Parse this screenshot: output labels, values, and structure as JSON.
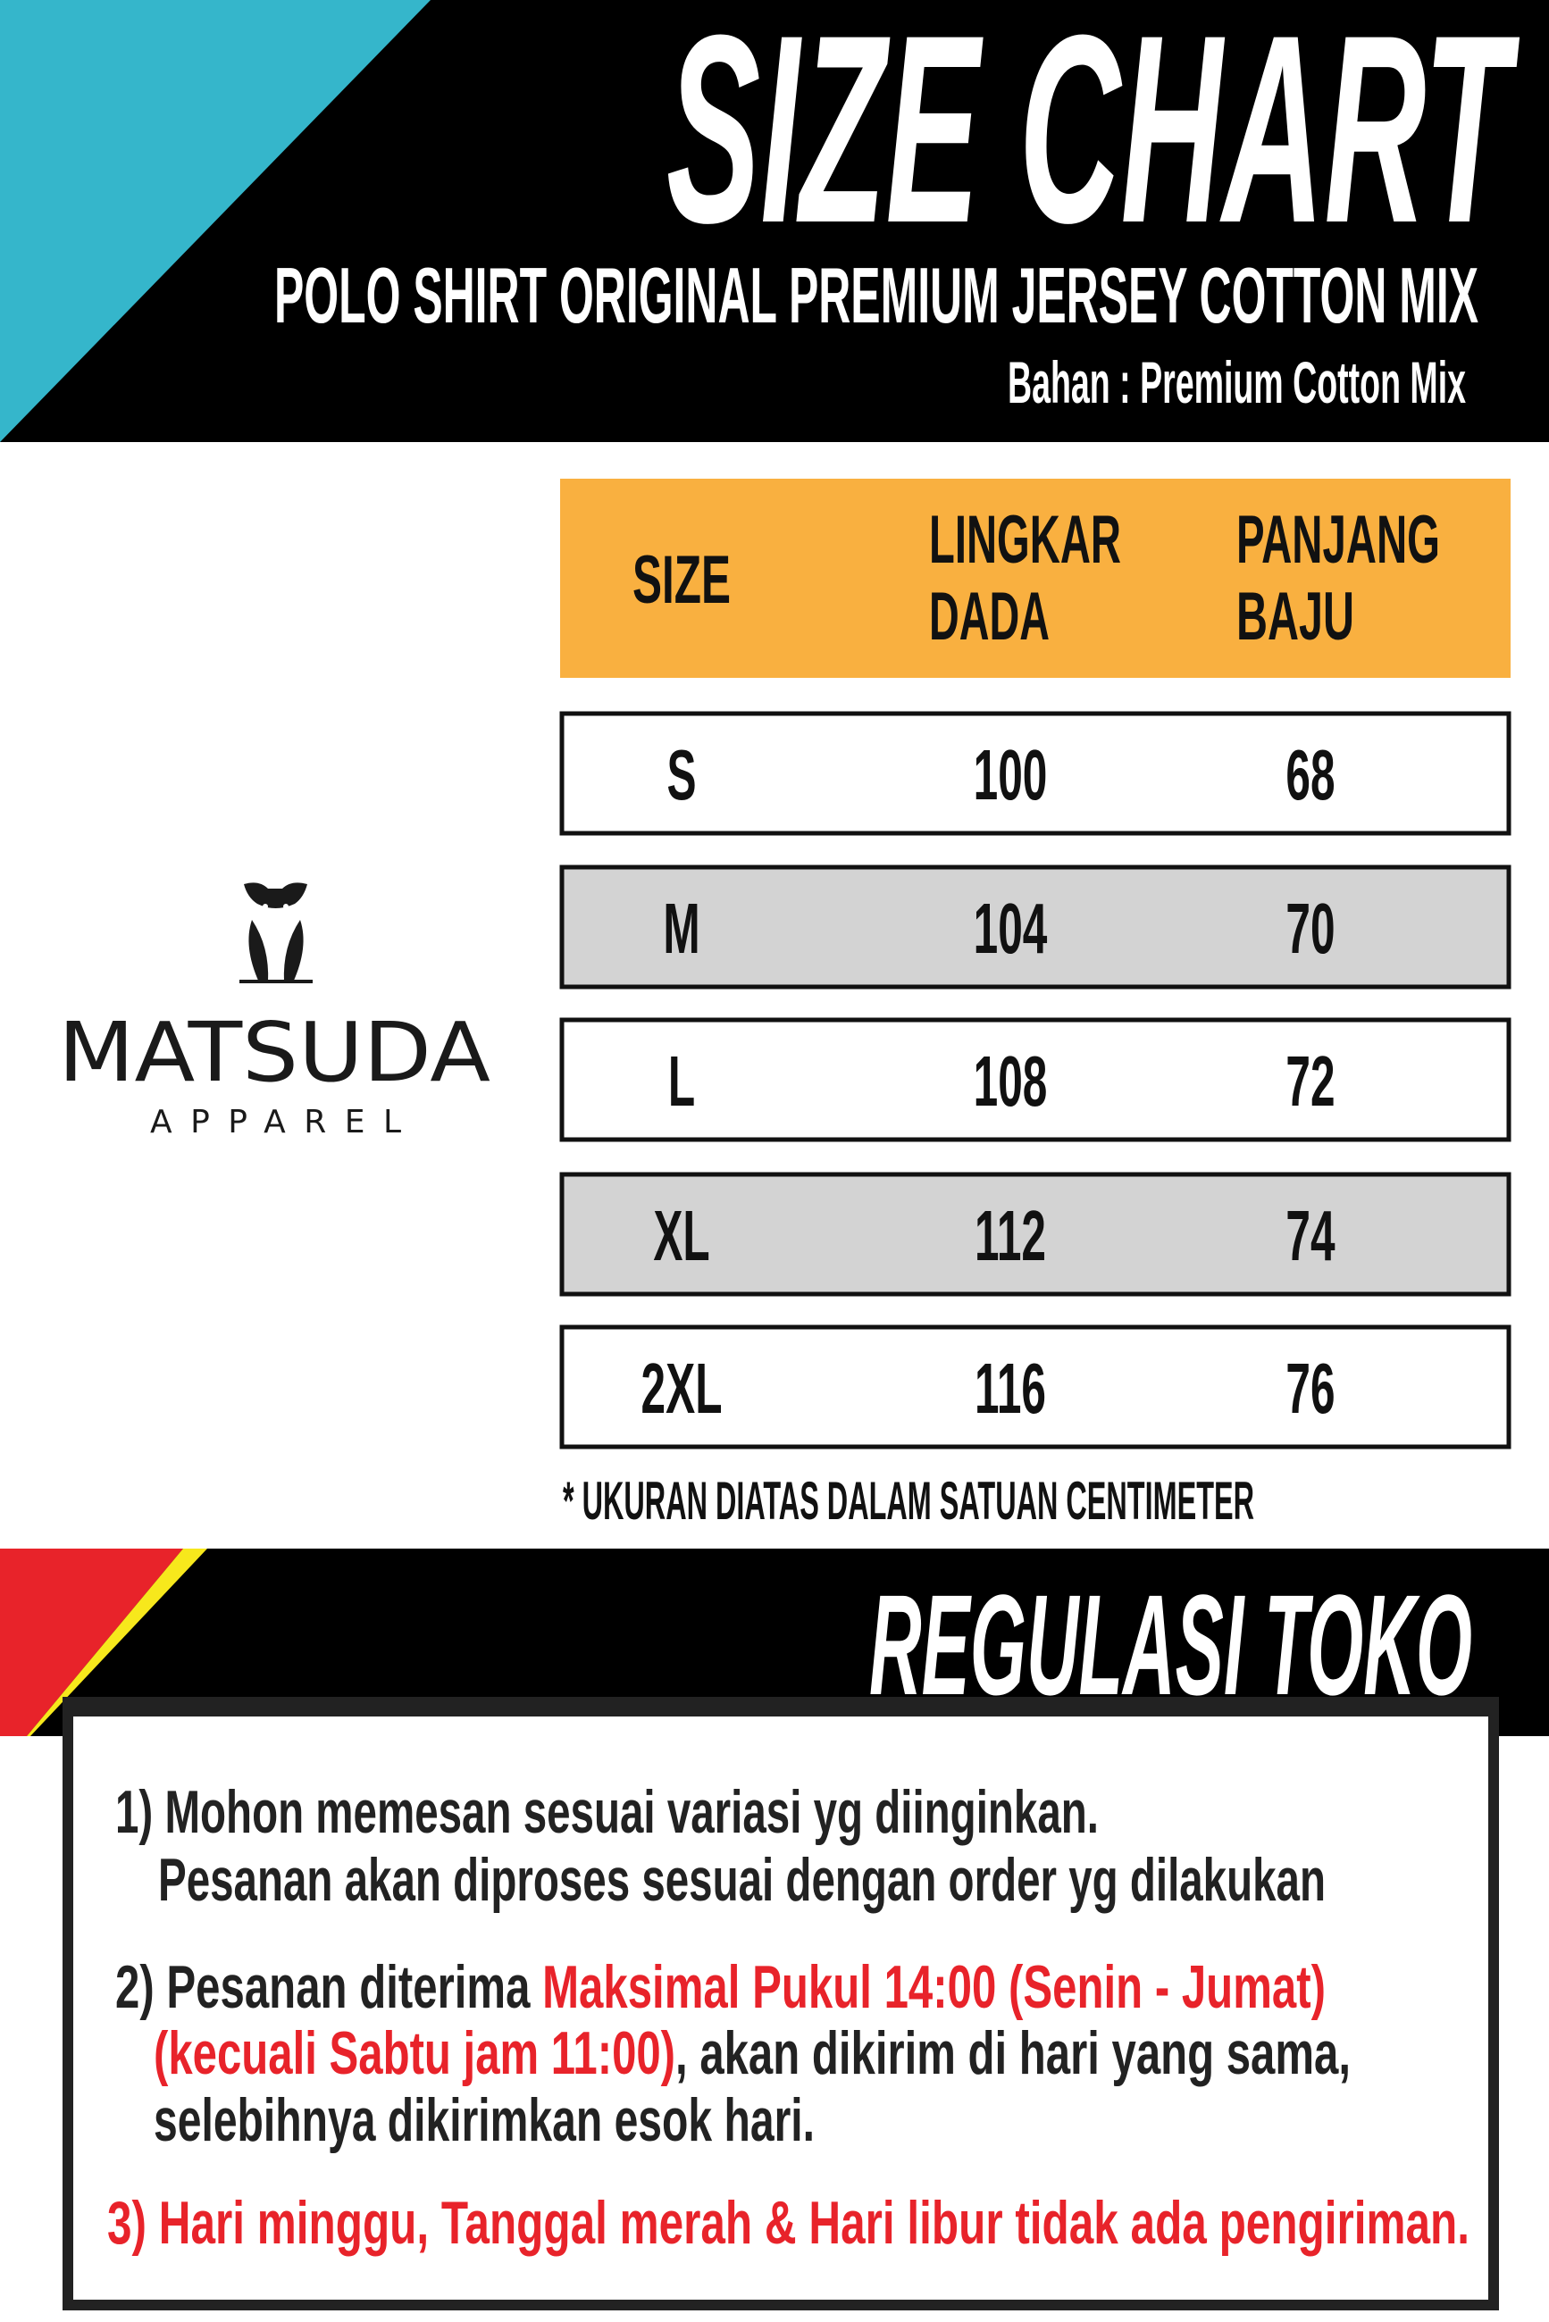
{
  "colors": {
    "header_bg": "#000000",
    "accent_cyan": "#35b6cb",
    "table_header": "#f9b040",
    "row_alt": "#d3d3d3",
    "accent_red": "#e8232a",
    "accent_yellow": "#f7e81c",
    "box_border": "#222222"
  },
  "header": {
    "title": "SIZE CHART",
    "subtitle": "POLO SHIRT ORIGINAL PREMIUM JERSEY COTTON MIX",
    "material": "Bahan : Premium Cotton Mix"
  },
  "logo": {
    "icon": "owl-icon",
    "brand": "MATSUDA",
    "tagline": "APPAREL"
  },
  "table": {
    "headers": {
      "size": "SIZE",
      "chest_1": "LINGKAR",
      "chest_2": "DADA",
      "length_1": "PANJANG",
      "length_2": "BAJU"
    },
    "rows": [
      {
        "size": "S",
        "chest": "100",
        "length": "68"
      },
      {
        "size": "M",
        "chest": "104",
        "length": "70"
      },
      {
        "size": "L",
        "chest": "108",
        "length": "72"
      },
      {
        "size": "XL",
        "chest": "112",
        "length": "74"
      },
      {
        "size": "2XL",
        "chest": "116",
        "length": "76"
      }
    ],
    "footnote": "* UKURAN DIATAS DALAM SATUAN CENTIMETER"
  },
  "regulations": {
    "title": "REGULASI TOKO",
    "rule1_line1": "1) Mohon memesan sesuai variasi yg diinginkan.",
    "rule1_line2": "Pesanan akan diproses sesuai dengan order yg dilakukan",
    "rule2_line1_a": "2) Pesanan diterima ",
    "rule2_line1_b": "Maksimal Pukul 14:00 (Senin - Jumat)",
    "rule2_line2_a": "(kecuali Sabtu jam 11:00)",
    "rule2_line2_b": ", akan dikirim di hari yang sama,",
    "rule2_line3": "selebihnya dikirimkan esok hari.",
    "rule3": "3) Hari minggu, Tanggal merah & Hari libur tidak ada pengiriman."
  }
}
